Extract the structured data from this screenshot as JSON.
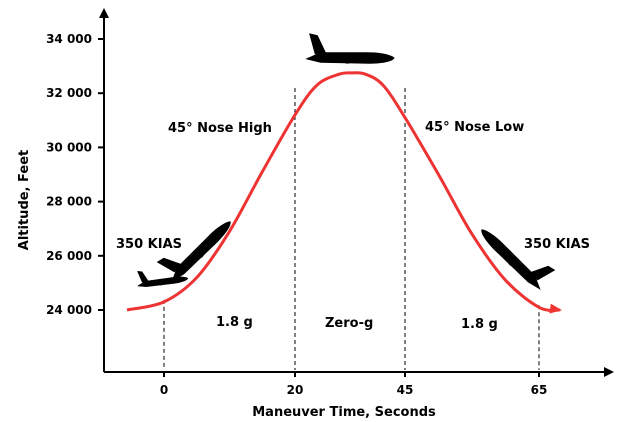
{
  "chart_data": {
    "type": "line",
    "title": "",
    "xlabel": "Maneuver Time, Seconds",
    "ylabel": "Altitude, Feet",
    "x_ticks": [
      "0",
      "20",
      "45",
      "65"
    ],
    "y_ticks": [
      "24 000",
      "26 000",
      "28 000",
      "30 000",
      "32 000",
      "34 000"
    ],
    "ylim": [
      22000,
      35000
    ],
    "grid": false,
    "series": [
      {
        "color": "#ee3333",
        "x": [
          -5,
          0,
          5,
          10,
          15,
          20,
          25,
          30,
          33,
          36,
          40,
          45,
          50,
          55,
          60,
          65,
          68
        ],
        "y": [
          24000,
          24300,
          25200,
          26900,
          29100,
          31200,
          32300,
          32700,
          32750,
          32700,
          32300,
          31100,
          29000,
          26800,
          25100,
          24100,
          24000
        ]
      }
    ],
    "phase_markers": [
      0,
      20,
      45,
      65
    ],
    "annotations": {
      "nose_high": "45° Nose High",
      "nose_low": "45° Nose Low",
      "kias_left": "350 KIAS",
      "kias_right": "350 KIAS",
      "g_left": "1.8 g",
      "g_mid": "Zero-g",
      "g_right": "1.8 g"
    }
  }
}
